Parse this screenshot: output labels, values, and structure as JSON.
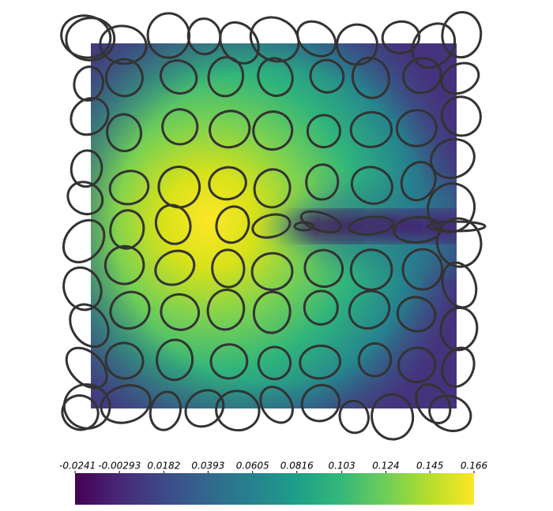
{
  "chart_data": {
    "type": "heatmap",
    "colorbar": {
      "clim": [
        -0.0241,
        0.166
      ],
      "ticks": [
        -0.0241,
        -0.00293,
        0.0182,
        0.0393,
        0.0605,
        0.0816,
        0.103,
        0.124,
        0.145,
        0.166
      ],
      "colors": [
        "#440154",
        "#482878",
        "#3e4989",
        "#31688e",
        "#26828e",
        "#1f9e89",
        "#35b779",
        "#6ece58",
        "#b5de2b",
        "#fde725"
      ]
    }
  }
}
